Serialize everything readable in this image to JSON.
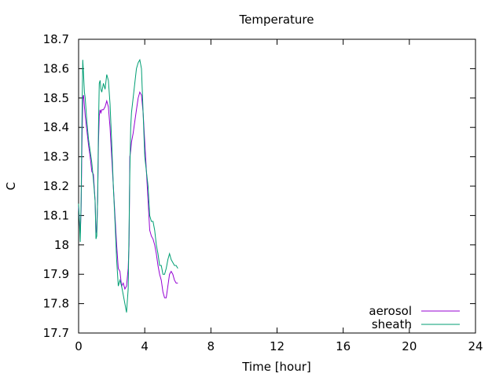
{
  "chart_data": {
    "type": "line",
    "title": "Temperature",
    "xlabel": "Time [hour]",
    "ylabel": "C",
    "xlim": [
      0,
      24
    ],
    "ylim": [
      17.7,
      18.7
    ],
    "xticks": [
      0,
      4,
      8,
      12,
      16,
      20,
      24
    ],
    "xtick_labels": [
      "0",
      "4",
      "8",
      "12",
      "16",
      "20",
      "24"
    ],
    "yticks": [
      17.7,
      17.8,
      17.9,
      18.0,
      18.1,
      18.2,
      18.3,
      18.4,
      18.5,
      18.6,
      18.7
    ],
    "ytick_labels": [
      "17.7",
      "17.8",
      "17.9",
      "18",
      "18.1",
      "18.2",
      "18.3",
      "18.4",
      "18.5",
      "18.6",
      "18.7"
    ],
    "grid": false,
    "legend_position": "bottom-right",
    "series": [
      {
        "name": "aerosol",
        "color": "#9400d3",
        "x": [
          0.0,
          0.05,
          0.1,
          0.15,
          0.2,
          0.25,
          0.3,
          0.35,
          0.4,
          0.5,
          0.6,
          0.7,
          0.8,
          0.9,
          1.0,
          1.05,
          1.1,
          1.15,
          1.2,
          1.25,
          1.3,
          1.35,
          1.4,
          1.5,
          1.6,
          1.7,
          1.8,
          1.9,
          2.0,
          2.1,
          2.2,
          2.3,
          2.4,
          2.5,
          2.6,
          2.7,
          2.8,
          2.9,
          3.0,
          3.05,
          3.1,
          3.15,
          3.2,
          3.3,
          3.4,
          3.5,
          3.6,
          3.7,
          3.8,
          3.9,
          4.0,
          4.1,
          4.2,
          4.3,
          4.4,
          4.5,
          4.6,
          4.7,
          4.8,
          4.9,
          5.0,
          5.1,
          5.2,
          5.3,
          5.4,
          5.5,
          5.6,
          5.7,
          5.8,
          5.9,
          6.0
        ],
        "values": [
          18.13,
          18.08,
          18.04,
          18.12,
          18.33,
          18.5,
          18.51,
          18.47,
          18.44,
          18.39,
          18.34,
          18.3,
          18.25,
          18.24,
          18.15,
          18.04,
          18.05,
          18.15,
          18.35,
          18.44,
          18.46,
          18.45,
          18.46,
          18.46,
          18.47,
          18.49,
          18.47,
          18.4,
          18.3,
          18.2,
          18.1,
          18.0,
          17.92,
          17.91,
          17.86,
          17.87,
          17.85,
          17.86,
          17.92,
          18.0,
          18.3,
          18.32,
          18.35,
          18.38,
          18.42,
          18.46,
          18.5,
          18.52,
          18.51,
          18.45,
          18.35,
          18.25,
          18.15,
          18.05,
          18.03,
          18.02,
          18.0,
          17.97,
          17.93,
          17.9,
          17.88,
          17.84,
          17.82,
          17.82,
          17.86,
          17.9,
          17.91,
          17.9,
          17.88,
          17.87,
          17.87
        ]
      },
      {
        "name": "sheath",
        "color": "#009e73",
        "x": [
          0.0,
          0.05,
          0.1,
          0.15,
          0.2,
          0.25,
          0.3,
          0.35,
          0.4,
          0.5,
          0.6,
          0.7,
          0.8,
          0.9,
          1.0,
          1.05,
          1.1,
          1.15,
          1.2,
          1.25,
          1.3,
          1.35,
          1.4,
          1.5,
          1.6,
          1.7,
          1.8,
          1.9,
          2.0,
          2.1,
          2.2,
          2.3,
          2.4,
          2.5,
          2.6,
          2.7,
          2.8,
          2.9,
          3.0,
          3.05,
          3.1,
          3.15,
          3.2,
          3.3,
          3.4,
          3.5,
          3.6,
          3.7,
          3.8,
          3.9,
          4.0,
          4.1,
          4.2,
          4.3,
          4.4,
          4.5,
          4.6,
          4.7,
          4.8,
          4.9,
          5.0,
          5.1,
          5.2,
          5.3,
          5.4,
          5.5,
          5.6,
          5.7,
          5.8,
          5.9,
          6.0
        ],
        "values": [
          18.14,
          18.08,
          18.01,
          18.15,
          18.4,
          18.63,
          18.58,
          18.52,
          18.5,
          18.42,
          18.36,
          18.32,
          18.28,
          18.22,
          18.15,
          18.02,
          18.03,
          18.15,
          18.4,
          18.55,
          18.56,
          18.53,
          18.52,
          18.55,
          18.53,
          18.58,
          18.56,
          18.48,
          18.35,
          18.2,
          18.08,
          17.95,
          17.86,
          17.88,
          17.86,
          17.83,
          17.8,
          17.77,
          17.85,
          18.05,
          18.25,
          18.4,
          18.45,
          18.5,
          18.55,
          18.6,
          18.62,
          18.63,
          18.6,
          18.45,
          18.3,
          18.25,
          18.2,
          18.1,
          18.08,
          18.08,
          18.05,
          18.0,
          17.97,
          17.93,
          17.93,
          17.9,
          17.9,
          17.92,
          17.95,
          17.97,
          17.95,
          17.94,
          17.93,
          17.93,
          17.92
        ]
      }
    ]
  }
}
